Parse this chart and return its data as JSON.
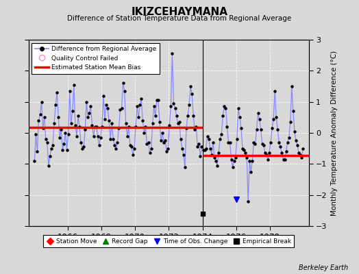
{
  "title": "IKIZCEHAYMANA",
  "subtitle": "Difference of Station Temperature Data from Regional Average",
  "ylabel_right": "Monthly Temperature Anomaly Difference (°C)",
  "ylim": [
    -3,
    3
  ],
  "yticks": [
    -3,
    -2,
    -1,
    0,
    1,
    2,
    3
  ],
  "xlim": [
    1963.7,
    1980.3
  ],
  "xticks": [
    1966,
    1968,
    1970,
    1972,
    1974,
    1976,
    1978
  ],
  "background_color": "#d8d8d8",
  "plot_bg_color": "#d8d8d8",
  "line_color": "#8888ff",
  "marker_color": "#000000",
  "bias1_y": 0.18,
  "bias1_xstart": 1963.7,
  "bias1_xend": 1974.0,
  "bias2_y": -0.72,
  "bias2_xstart": 1974.0,
  "bias2_xend": 1980.3,
  "break_x": 1974.0,
  "break_y": -2.6,
  "obs_change_x": 1976.0,
  "obs_change_y": -2.15,
  "watermark": "Berkeley Earth",
  "time_data": [
    1964.042,
    1964.125,
    1964.208,
    1964.292,
    1964.375,
    1964.458,
    1964.542,
    1964.625,
    1964.708,
    1964.792,
    1964.875,
    1964.958,
    1965.042,
    1965.125,
    1965.208,
    1965.292,
    1965.375,
    1965.458,
    1965.542,
    1965.625,
    1965.708,
    1965.792,
    1965.875,
    1965.958,
    1966.042,
    1966.125,
    1966.208,
    1966.292,
    1966.375,
    1966.458,
    1966.542,
    1966.625,
    1966.708,
    1966.792,
    1966.875,
    1966.958,
    1967.042,
    1967.125,
    1967.208,
    1967.292,
    1967.375,
    1967.458,
    1967.542,
    1967.625,
    1967.708,
    1967.792,
    1967.875,
    1967.958,
    1968.042,
    1968.125,
    1968.208,
    1968.292,
    1968.375,
    1968.458,
    1968.542,
    1968.625,
    1968.708,
    1968.792,
    1968.875,
    1968.958,
    1969.042,
    1969.125,
    1969.208,
    1969.292,
    1969.375,
    1969.458,
    1969.542,
    1969.625,
    1969.708,
    1969.792,
    1969.875,
    1969.958,
    1970.042,
    1970.125,
    1970.208,
    1970.292,
    1970.375,
    1970.458,
    1970.542,
    1970.625,
    1970.708,
    1970.792,
    1970.875,
    1970.958,
    1971.042,
    1971.125,
    1971.208,
    1971.292,
    1971.375,
    1971.458,
    1971.542,
    1971.625,
    1971.708,
    1971.792,
    1971.875,
    1971.958,
    1972.042,
    1972.125,
    1972.208,
    1972.292,
    1972.375,
    1972.458,
    1972.542,
    1972.625,
    1972.708,
    1972.792,
    1972.875,
    1972.958,
    1973.042,
    1973.125,
    1973.208,
    1973.292,
    1973.375,
    1973.458,
    1973.542,
    1973.625,
    1973.708,
    1973.792,
    1973.875,
    1973.958,
    1974.042,
    1974.125,
    1974.208,
    1974.292,
    1974.375,
    1974.458,
    1974.542,
    1974.625,
    1974.708,
    1974.792,
    1974.875,
    1974.958,
    1975.042,
    1975.125,
    1975.208,
    1975.292,
    1975.375,
    1975.458,
    1975.542,
    1975.625,
    1975.708,
    1975.792,
    1975.875,
    1975.958,
    1976.042,
    1976.125,
    1976.208,
    1976.292,
    1976.375,
    1976.458,
    1976.542,
    1976.625,
    1976.708,
    1976.792,
    1976.875,
    1976.958,
    1977.042,
    1977.125,
    1977.208,
    1977.292,
    1977.375,
    1977.458,
    1977.542,
    1977.625,
    1977.708,
    1977.792,
    1977.875,
    1977.958,
    1978.042,
    1978.125,
    1978.208,
    1978.292,
    1978.375,
    1978.458,
    1978.542,
    1978.625,
    1978.708,
    1978.792,
    1978.875,
    1978.958,
    1979.042,
    1979.125,
    1979.208,
    1979.292,
    1979.375,
    1979.458,
    1979.542,
    1979.625,
    1979.708,
    1979.792,
    1979.875,
    1979.958
  ],
  "temp_data": [
    -0.9,
    -0.05,
    -0.6,
    0.4,
    0.6,
    1.0,
    0.15,
    0.5,
    -0.2,
    -0.3,
    -1.05,
    -0.75,
    -0.5,
    -0.4,
    0.3,
    0.9,
    1.3,
    0.5,
    -0.15,
    0.1,
    -0.55,
    -0.35,
    0.0,
    -0.55,
    -0.05,
    1.35,
    0.3,
    0.7,
    1.55,
    0.25,
    -0.1,
    0.55,
    0.2,
    -0.3,
    -0.5,
    -0.45,
    0.1,
    1.0,
    0.5,
    0.65,
    0.85,
    0.25,
    -0.1,
    0.2,
    0.2,
    -0.1,
    -0.4,
    -0.15,
    0.2,
    1.2,
    0.45,
    0.9,
    0.8,
    0.4,
    -0.2,
    0.3,
    -0.2,
    -0.4,
    -0.5,
    -0.3,
    0.15,
    0.75,
    0.8,
    1.6,
    1.35,
    0.3,
    -0.1,
    0.2,
    -0.4,
    -0.45,
    -0.7,
    -0.5,
    0.2,
    0.85,
    0.5,
    0.9,
    1.1,
    0.4,
    0.0,
    0.2,
    -0.35,
    -0.3,
    -0.65,
    -0.5,
    0.3,
    0.85,
    0.55,
    1.05,
    1.05,
    0.35,
    -0.25,
    0.0,
    -0.3,
    -0.25,
    -0.6,
    -0.5,
    0.25,
    0.85,
    2.55,
    0.95,
    0.8,
    0.55,
    0.3,
    0.35,
    -0.2,
    -0.5,
    -0.7,
    -1.1,
    0.15,
    0.55,
    0.9,
    1.5,
    1.25,
    0.55,
    0.1,
    0.2,
    -0.45,
    -0.35,
    -0.75,
    -0.45,
    -0.55,
    -0.55,
    -0.5,
    -0.1,
    -0.2,
    -0.5,
    -0.7,
    -0.3,
    -0.8,
    -0.9,
    -1.05,
    -0.65,
    -0.2,
    -0.05,
    0.55,
    0.85,
    0.8,
    0.2,
    -0.3,
    -0.3,
    -0.85,
    -1.1,
    -0.9,
    -0.8,
    -0.2,
    0.8,
    0.5,
    0.15,
    -0.5,
    -0.55,
    -0.65,
    -0.8,
    -2.2,
    -0.9,
    -1.25,
    -0.9,
    -0.3,
    -0.35,
    0.1,
    0.65,
    0.45,
    0.1,
    -0.35,
    -0.4,
    -0.65,
    -0.7,
    -0.85,
    -0.65,
    -0.3,
    0.15,
    0.45,
    1.35,
    0.5,
    0.1,
    -0.3,
    -0.45,
    -0.65,
    -0.85,
    -0.85,
    -0.6,
    -0.3,
    -0.15,
    0.35,
    1.5,
    0.7,
    0.05,
    -0.25,
    -0.4,
    -0.65,
    -0.7,
    -0.8,
    -0.5
  ]
}
